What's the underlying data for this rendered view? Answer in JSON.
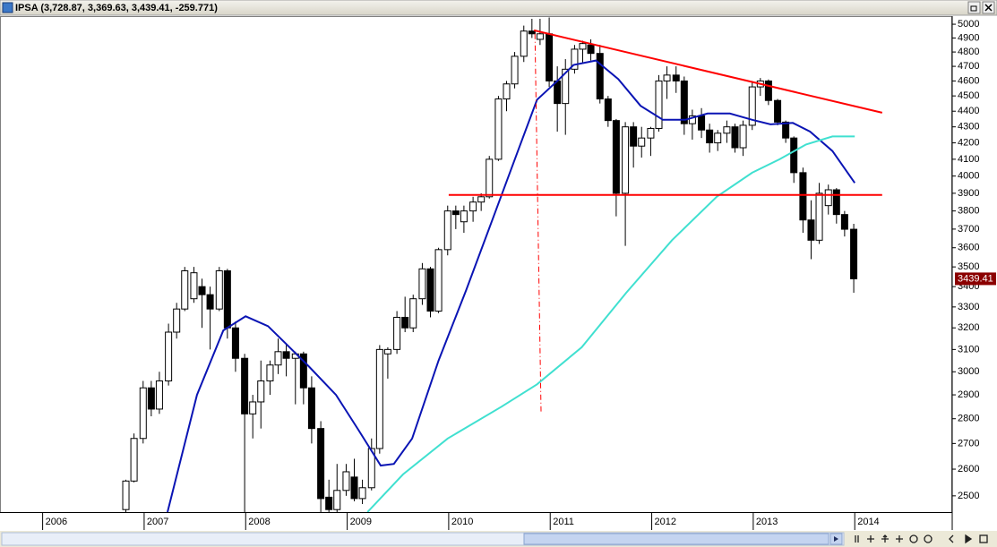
{
  "chart_data": {
    "type": "candlestick",
    "title": "IPSA (3,728.87, 3,369.63, 3,439.41, -259.771)",
    "ylog": true,
    "ylim": [
      2441,
      5060
    ],
    "yticks": [
      2500,
      2600,
      2700,
      2800,
      2900,
      3000,
      3100,
      3200,
      3300,
      3400,
      3500,
      3600,
      3700,
      3800,
      3900,
      4000,
      4100,
      4200,
      4300,
      4400,
      4500,
      4600,
      4700,
      4800,
      4900,
      5000
    ],
    "xlim": [
      2005.58,
      2014.96
    ],
    "xticks": [
      2006,
      2007,
      2008,
      2009,
      2010,
      2011,
      2012,
      2013,
      2014
    ],
    "up_color": "#ffffff",
    "down_color": "#000000",
    "x": [
      2006.82,
      2006.9,
      2006.99,
      2007.07,
      2007.15,
      2007.24,
      2007.32,
      2007.4,
      2007.49,
      2007.57,
      2007.65,
      2007.74,
      2007.82,
      2007.9,
      2007.99,
      2008.07,
      2008.15,
      2008.24,
      2008.32,
      2008.4,
      2008.49,
      2008.57,
      2008.65,
      2008.74,
      2008.82,
      2008.9,
      2008.99,
      2009.07,
      2009.15,
      2009.24,
      2009.32,
      2009.4,
      2009.49,
      2009.57,
      2009.65,
      2009.74,
      2009.82,
      2009.9,
      2009.99,
      2010.07,
      2010.15,
      2010.24,
      2010.32,
      2010.4,
      2010.49,
      2010.57,
      2010.65,
      2010.74,
      2010.82,
      2010.9,
      2010.99,
      2011.07,
      2011.15,
      2011.24,
      2011.32,
      2011.4,
      2011.49,
      2011.57,
      2011.65,
      2011.74,
      2011.82,
      2011.9,
      2011.99,
      2012.07,
      2012.15,
      2012.24,
      2012.32,
      2012.4,
      2012.49,
      2012.57,
      2012.65,
      2012.74,
      2012.82,
      2012.9,
      2012.99,
      2013.07,
      2013.15,
      2013.24,
      2013.32,
      2013.4,
      2013.49,
      2013.57,
      2013.65,
      2013.74,
      2013.82,
      2013.9,
      2013.99
    ],
    "open": [
      2450,
      2555,
      2720,
      2930,
      2840,
      2960,
      3180,
      3290,
      3340,
      3400,
      3360,
      3290,
      3480,
      3200,
      3060,
      2820,
      2870,
      2960,
      3030,
      3090,
      3060,
      3080,
      2930,
      2760,
      2495,
      2450,
      2520,
      2570,
      2490,
      2530,
      2680,
      3080,
      3100,
      3250,
      3200,
      3340,
      3490,
      3280,
      3590,
      3800,
      3740,
      3800,
      3850,
      3880,
      4100,
      4480,
      4580,
      4770,
      4950,
      4890,
      4930,
      4600,
      4450,
      4680,
      4820,
      4850,
      4790,
      4480,
      4340,
      3900,
      4300,
      4180,
      4230,
      4290,
      4600,
      4640,
      4600,
      4320,
      4370,
      4280,
      4200,
      4260,
      4300,
      4170,
      4310,
      4560,
      4600,
      4470,
      4330,
      4230,
      4020,
      3750,
      3640,
      3830,
      3920,
      3780,
      3699.18
    ],
    "high": [
      2560,
      2740,
      2960,
      2960,
      3000,
      3220,
      3320,
      3500,
      3500,
      3440,
      3400,
      3500,
      3490,
      3230,
      3080,
      2900,
      3050,
      3050,
      3150,
      3120,
      3090,
      3090,
      2980,
      2790,
      2560,
      2620,
      2620,
      2640,
      2560,
      2720,
      3120,
      3110,
      3280,
      3350,
      3360,
      3520,
      3500,
      3600,
      3830,
      3830,
      3830,
      3880,
      3900,
      4120,
      4500,
      4600,
      4800,
      4990,
      5040,
      5040,
      5050,
      4700,
      4750,
      4850,
      4880,
      4890,
      4850,
      4500,
      4350,
      4330,
      4330,
      4300,
      4300,
      4640,
      4700,
      4700,
      4630,
      4410,
      4420,
      4320,
      4280,
      4340,
      4320,
      4340,
      4600,
      4620,
      4610,
      4480,
      4340,
      4240,
      4050,
      3860,
      3960,
      3950,
      3930,
      3800,
      3728.87
    ],
    "low": [
      2440,
      2550,
      2700,
      2810,
      2820,
      2940,
      3150,
      3280,
      3320,
      3200,
      3100,
      3280,
      3150,
      3000,
      2440,
      2720,
      2760,
      2900,
      2990,
      2980,
      2860,
      2860,
      2700,
      2440,
      2440,
      2440,
      2500,
      2480,
      2470,
      2520,
      2660,
      2970,
      3080,
      3180,
      3180,
      3310,
      3250,
      3270,
      3560,
      3700,
      3680,
      3740,
      3800,
      3870,
      4090,
      4400,
      4550,
      4730,
      4900,
      4850,
      4560,
      4270,
      4250,
      4650,
      4720,
      4740,
      4450,
      4300,
      3770,
      3610,
      4050,
      4110,
      4120,
      4270,
      4480,
      4520,
      4250,
      4220,
      4230,
      4140,
      4150,
      4200,
      4140,
      4120,
      4280,
      4500,
      4440,
      4310,
      4200,
      3960,
      3680,
      3540,
      3620,
      3780,
      3730,
      3660,
      3369.63
    ],
    "close": [
      2555,
      2720,
      2930,
      2840,
      2960,
      3180,
      3290,
      3480,
      3470,
      3360,
      3290,
      3480,
      3200,
      3060,
      2820,
      2870,
      2960,
      3030,
      3090,
      3060,
      3080,
      2930,
      2760,
      2490,
      2450,
      2520,
      2590,
      2490,
      2530,
      2680,
      3100,
      3100,
      3250,
      3200,
      3340,
      3490,
      3280,
      3590,
      3800,
      3780,
      3800,
      3850,
      3880,
      4100,
      4480,
      4580,
      4770,
      4950,
      4930,
      4930,
      4600,
      4450,
      4680,
      4820,
      4860,
      4790,
      4480,
      4340,
      3900,
      4300,
      4180,
      4230,
      4290,
      4600,
      4640,
      4600,
      4320,
      4370,
      4280,
      4200,
      4260,
      4300,
      4170,
      4310,
      4560,
      4600,
      4470,
      4330,
      4230,
      4020,
      3750,
      3640,
      3900,
      3920,
      3780,
      3699.18,
      3439.41
    ],
    "last_price": 3439.41,
    "last_price_color": "#8b0000",
    "lines": [
      {
        "color": "#0a14b4",
        "style": "solid",
        "x": [
          2007.23,
          2007.52,
          2007.78,
          2008.0,
          2008.22,
          2008.4,
          2008.62,
          2008.89,
          2009.11,
          2009.33,
          2009.46,
          2009.64,
          2009.9,
          2010.17,
          2010.43,
          2010.7,
          2010.87,
          2011.09,
          2011.23,
          2011.45,
          2011.67,
          2011.89,
          2012.11,
          2012.33,
          2012.55,
          2012.77,
          2012.99,
          2013.17,
          2013.39,
          2013.56,
          2013.78,
          2014.0
        ],
        "values": [
          2441,
          2900,
          3188,
          3255,
          3208,
          3125,
          3025,
          2900,
          2755,
          2614,
          2620,
          2720,
          3050,
          3380,
          3750,
          4180,
          4475,
          4613,
          4710,
          4740,
          4613,
          4435,
          4345,
          4345,
          4385,
          4385,
          4345,
          4316,
          4325,
          4270,
          4150,
          3960
        ]
      },
      {
        "color": "#40e0d0",
        "style": "solid",
        "x": [
          2009.2,
          2009.55,
          2009.99,
          2010.52,
          2010.87,
          2011.31,
          2011.75,
          2012.2,
          2012.64,
          2012.99,
          2013.26,
          2013.52,
          2013.78,
          2014.0
        ],
        "values": [
          2441,
          2580,
          2720,
          2850,
          2945,
          3110,
          3370,
          3640,
          3880,
          4020,
          4100,
          4190,
          4240,
          4240
        ]
      },
      {
        "color": "#ff0000",
        "style": "solid",
        "x": [
          2010.84,
          2014.27
        ],
        "values": [
          4955,
          4390
        ]
      },
      {
        "color": "#ff0000",
        "style": "solid",
        "x": [
          2010.0,
          2014.27
        ],
        "values": [
          3890,
          3890
        ]
      },
      {
        "color": "#ff0000",
        "style": "dashdot",
        "x": [
          2010.85,
          2010.91
        ],
        "values": [
          4930,
          2830
        ]
      }
    ]
  }
}
